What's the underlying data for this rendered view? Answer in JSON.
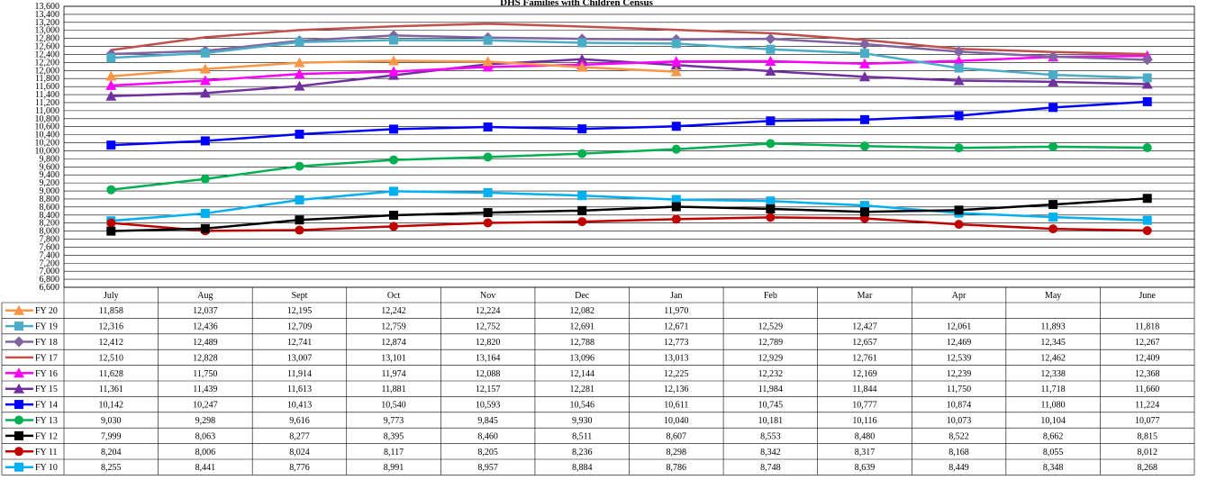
{
  "chart_data": {
    "type": "line",
    "title": "DHS Families with Children Census",
    "categories": [
      "July",
      "Aug",
      "Sept",
      "Oct",
      "Nov",
      "Dec",
      "Jan",
      "Feb",
      "Mar",
      "Apr",
      "May",
      "June"
    ],
    "ylim": [
      6600,
      13600
    ],
    "ytick_step": 200,
    "ytick_labels": [
      "6,600",
      "6,800",
      "7,000",
      "7,200",
      "7,400",
      "7,600",
      "7,800",
      "8,000",
      "8,200",
      "8,400",
      "8,600",
      "8,800",
      "9,000",
      "9,200",
      "9,400",
      "9,600",
      "9,800",
      "10,000",
      "10,200",
      "10,400",
      "10,600",
      "10,800",
      "11,000",
      "11,200",
      "11,400",
      "11,600",
      "11,800",
      "12,000",
      "12,200",
      "12,400",
      "12,600",
      "12,800",
      "13,000",
      "13,200",
      "13,400",
      "13,600"
    ],
    "grid": true,
    "legend": "data-table",
    "series": [
      {
        "name": "FY 20",
        "color": "#f79646",
        "marker": "triangle",
        "values": [
          11858,
          12037,
          12195,
          12242,
          12224,
          12082,
          11970,
          null,
          null,
          null,
          null,
          null
        ],
        "labels": [
          "11,858",
          "12,037",
          "12,195",
          "12,242",
          "12,224",
          "12,082",
          "11,970",
          "",
          "",
          "",
          "",
          ""
        ]
      },
      {
        "name": "FY 19",
        "color": "#4bacc6",
        "marker": "square",
        "values": [
          12316,
          12436,
          12709,
          12759,
          12752,
          12691,
          12671,
          12529,
          12427,
          12061,
          11893,
          11818
        ],
        "labels": [
          "12,316",
          "12,436",
          "12,709",
          "12,759",
          "12,752",
          "12,691",
          "12,671",
          "12,529",
          "12,427",
          "12,061",
          "11,893",
          "11,818"
        ]
      },
      {
        "name": "FY 18",
        "color": "#8064a2",
        "marker": "diamond",
        "values": [
          12412,
          12489,
          12741,
          12874,
          12820,
          12788,
          12773,
          12789,
          12657,
          12469,
          12345,
          12267
        ],
        "labels": [
          "12,412",
          "12,489",
          "12,741",
          "12,874",
          "12,820",
          "12,788",
          "12,773",
          "12,789",
          "12,657",
          "12,469",
          "12,345",
          "12,267"
        ]
      },
      {
        "name": "FY 17",
        "color": "#c0504d",
        "marker": "none",
        "values": [
          12510,
          12828,
          13007,
          13101,
          13164,
          13096,
          13013,
          12929,
          12761,
          12539,
          12462,
          12409
        ],
        "labels": [
          "12,510",
          "12,828",
          "13,007",
          "13,101",
          "13,164",
          "13,096",
          "13,013",
          "12,929",
          "12,761",
          "12,539",
          "12,462",
          "12,409"
        ]
      },
      {
        "name": "FY 16",
        "color": "#ff00ff",
        "marker": "triangle",
        "values": [
          11628,
          11750,
          11914,
          11974,
          12088,
          12144,
          12225,
          12232,
          12169,
          12239,
          12338,
          12368
        ],
        "labels": [
          "11,628",
          "11,750",
          "11,914",
          "11,974",
          "12,088",
          "12,144",
          "12,225",
          "12,232",
          "12,169",
          "12,239",
          "12,338",
          "12,368"
        ]
      },
      {
        "name": "FY 15",
        "color": "#7030a0",
        "marker": "triangle",
        "values": [
          11361,
          11439,
          11613,
          11881,
          12157,
          12281,
          12136,
          11984,
          11844,
          11750,
          11718,
          11660
        ],
        "labels": [
          "11,361",
          "11,439",
          "11,613",
          "11,881",
          "12,157",
          "12,281",
          "12,136",
          "11,984",
          "11,844",
          "11,750",
          "11,718",
          "11,660"
        ]
      },
      {
        "name": "FY 14",
        "color": "#0000ff",
        "marker": "square",
        "values": [
          10142,
          10247,
          10413,
          10540,
          10593,
          10546,
          10611,
          10745,
          10777,
          10874,
          11080,
          11224
        ],
        "labels": [
          "10,142",
          "10,247",
          "10,413",
          "10,540",
          "10,593",
          "10,546",
          "10,611",
          "10,745",
          "10,777",
          "10,874",
          "11,080",
          "11,224"
        ]
      },
      {
        "name": "FY 13",
        "color": "#00b050",
        "marker": "circle",
        "values": [
          9030,
          9298,
          9616,
          9773,
          9845,
          9930,
          10040,
          10181,
          10116,
          10073,
          10104,
          10077
        ],
        "labels": [
          "9,030",
          "9,298",
          "9,616",
          "9,773",
          "9,845",
          "9,930",
          "10,040",
          "10,181",
          "10,116",
          "10,073",
          "10,104",
          "10,077"
        ]
      },
      {
        "name": "FY 12",
        "color": "#000000",
        "marker": "square",
        "values": [
          7999,
          8063,
          8277,
          8395,
          8460,
          8511,
          8607,
          8553,
          8480,
          8522,
          8662,
          8815
        ],
        "labels": [
          "7,999",
          "8,063",
          "8,277",
          "8,395",
          "8,460",
          "8,511",
          "8,607",
          "8,553",
          "8,480",
          "8,522",
          "8,662",
          "8,815"
        ]
      },
      {
        "name": "FY 11",
        "color": "#c00000",
        "marker": "circle",
        "values": [
          8204,
          8006,
          8024,
          8117,
          8205,
          8236,
          8298,
          8342,
          8317,
          8168,
          8055,
          8012
        ],
        "labels": [
          "8,204",
          "8,006",
          "8,024",
          "8,117",
          "8,205",
          "8,236",
          "8,298",
          "8,342",
          "8,317",
          "8,168",
          "8,055",
          "8,012"
        ]
      },
      {
        "name": "FY 10",
        "color": "#00b0f0",
        "marker": "square",
        "values": [
          8255,
          8441,
          8776,
          8991,
          8957,
          8884,
          8786,
          8748,
          8639,
          8449,
          8348,
          8268
        ],
        "labels": [
          "8,255",
          "8,441",
          "8,776",
          "8,991",
          "8,957",
          "8,884",
          "8,786",
          "8,748",
          "8,639",
          "8,449",
          "8,348",
          "8,268"
        ]
      }
    ]
  }
}
